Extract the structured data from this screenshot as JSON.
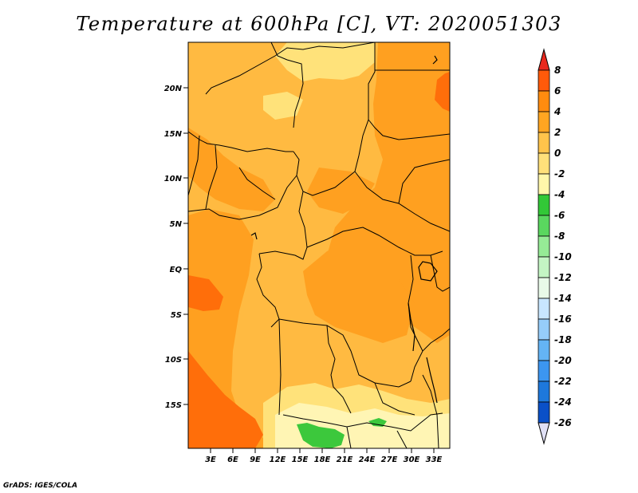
{
  "title": "Temperature at 600hPa [C], VT: 2020051303",
  "credit": "GrADS: IGES/COLA",
  "map": {
    "lat_ticks": [
      "20N",
      "15N",
      "10N",
      "5N",
      "EQ",
      "5S",
      "10S",
      "15S"
    ],
    "lon_ticks": [
      "3E",
      "6E",
      "9E",
      "12E",
      "15E",
      "18E",
      "21E",
      "24E",
      "27E",
      "30E",
      "33E"
    ]
  },
  "colorbar": {
    "levels": [
      "8",
      "6",
      "4",
      "2",
      "0",
      "-2",
      "-4",
      "-6",
      "-8",
      "-10",
      "-12",
      "-14",
      "-16",
      "-18",
      "-20",
      "-22",
      "-24",
      "-26"
    ],
    "colors": [
      "#e8281e",
      "#ff5a0a",
      "#ff8c0f",
      "#ffa521",
      "#ffc44b",
      "#ffe07a",
      "#fff7aa",
      "#32c837",
      "#5ad75f",
      "#96eb96",
      "#c4f5c4",
      "#e8fae8",
      "#c8e6ff",
      "#96cdfa",
      "#64b4f5",
      "#3c96f0",
      "#1e78dc",
      "#0a50c8",
      "#003cb4",
      "#002896",
      "#0a0a6e",
      "#e0e0f5"
    ]
  },
  "field_colors": {
    "warm_4_6": "#ff6e0a",
    "warm_2_4": "#ffa020",
    "warm_0_2": "#ffba41",
    "cool_m2_0": "#ffe27a",
    "cool_m4_m2": "#fff5b4",
    "green_m6_m4": "#3cc83c",
    "border": "#000000"
  }
}
